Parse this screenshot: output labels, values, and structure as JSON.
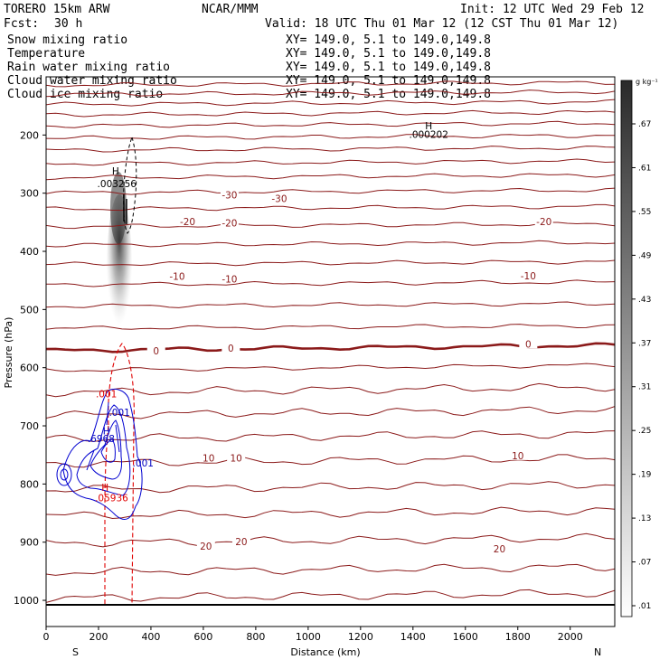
{
  "header": {
    "model": "TORERO  15km ARW",
    "org": "NCAR/MMM",
    "init": "Init: 12 UTC Wed 29 Feb 12",
    "fcst_label": "Fcst:",
    "fcst_value": "30 h",
    "valid": "Valid: 18 UTC Thu 01 Mar 12 (12 CST Thu 01 Mar 12)"
  },
  "fields": [
    {
      "name": "Snow mixing ratio",
      "xy": "XY= 149.0,  5.1 to 149.0,149.8",
      "color": "#000000"
    },
    {
      "name": "Temperature",
      "xy": "XY= 149.0,  5.1 to 149.0,149.8",
      "color": "#c00000"
    },
    {
      "name": "Rain water mixing ratio",
      "xy": "XY= 149.0,  5.1 to 149.0,149.8",
      "color": "#e00000"
    },
    {
      "name": "Cloud water mixing ratio",
      "xy": "XY= 149.0,  5.1 to 149.0,149.8",
      "color": "#0000c0"
    },
    {
      "name": "Cloud ice mixing ratio",
      "xy": "XY= 149.0,  5.1 to 149.0,149.8",
      "color": "#000000"
    }
  ],
  "chart_data": {
    "type": "cross-section",
    "xlabel": "Distance (km)",
    "ylabel": "Pressure (hPa)",
    "xlim": [
      0,
      2170
    ],
    "ylim": [
      1045,
      100
    ],
    "xticks": [
      0,
      200,
      400,
      600,
      800,
      1000,
      1200,
      1400,
      1600,
      1800,
      2000
    ],
    "yticks": [
      200,
      300,
      400,
      500,
      600,
      700,
      800,
      900,
      1000
    ],
    "x_end_labels": {
      "left": "S",
      "right": "N"
    },
    "temperature": {
      "color": "#8b1a1a",
      "contour_interval_C": 5,
      "isotherm_pressures_hPa": [
        112,
        128,
        145,
        163,
        182,
        203,
        224,
        247,
        271,
        297,
        325,
        355,
        387,
        420,
        455,
        492,
        530,
        566,
        600,
        638,
        677,
        718,
        760,
        805,
        850,
        897,
        947,
        992
      ],
      "labels": [
        {
          "text": "-30",
          "x": 700,
          "p": 303
        },
        {
          "text": "-30",
          "x": 890,
          "p": 309
        },
        {
          "text": "-20",
          "x": 540,
          "p": 349
        },
        {
          "text": "-20",
          "x": 700,
          "p": 351
        },
        {
          "text": "-20",
          "x": 1900,
          "p": 349
        },
        {
          "text": "-10",
          "x": 500,
          "p": 443
        },
        {
          "text": "-10",
          "x": 700,
          "p": 447
        },
        {
          "text": "-10",
          "x": 1840,
          "p": 442
        },
        {
          "text": "0",
          "x": 420,
          "p": 571
        },
        {
          "text": "0",
          "x": 705,
          "p": 566
        },
        {
          "text": "0",
          "x": 1840,
          "p": 559
        },
        {
          "text": "10",
          "x": 620,
          "p": 755
        },
        {
          "text": "10",
          "x": 725,
          "p": 755
        },
        {
          "text": "10",
          "x": 1800,
          "p": 751
        },
        {
          "text": "20",
          "x": 610,
          "p": 907
        },
        {
          "text": "20",
          "x": 745,
          "p": 899
        },
        {
          "text": "20",
          "x": 1730,
          "p": 911
        }
      ]
    },
    "snow_max": {
      "text": ".003256",
      "x": 270,
      "p": 290
    },
    "ice_max": {
      "text": ".000202",
      "x": 1460,
      "p": 205
    },
    "rain_labels": [
      {
        "text": ".001",
        "x": 230,
        "p": 651
      },
      {
        "text": ".05936",
        "x": 250,
        "p": 830
      }
    ],
    "cloud_water_labels": [
      {
        "text": ".001",
        "x": 280,
        "p": 683
      },
      {
        "text": ".6968",
        "x": 210,
        "p": 728
      },
      {
        "text": ".001",
        "x": 370,
        "p": 770
      }
    ],
    "maxima_markers": [
      {
        "text": "H",
        "x": 265,
        "p": 268
      },
      {
        "text": "H",
        "x": 1460,
        "p": 190
      },
      {
        "text": "H",
        "x": 230,
        "p": 715
      },
      {
        "text": "H",
        "x": 225,
        "p": 812
      }
    ],
    "colorbar": {
      "unit": "g kg⁻¹",
      "labels": [
        ".01",
        ".07",
        ".13",
        ".19",
        ".25",
        ".31",
        ".37",
        ".43",
        ".49",
        ".55",
        ".61",
        ".67"
      ]
    }
  }
}
